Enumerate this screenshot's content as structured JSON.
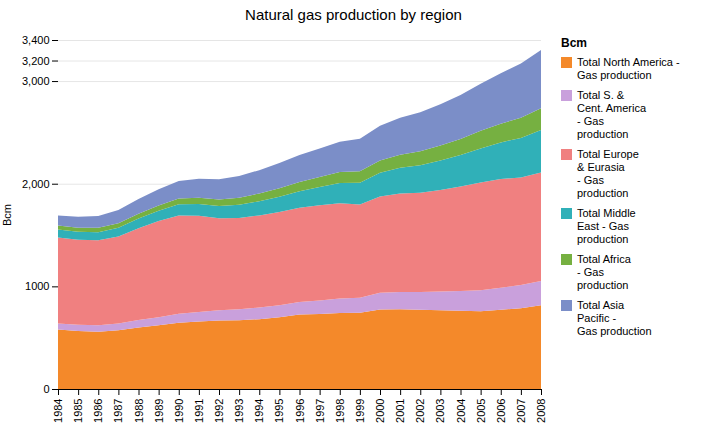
{
  "chart_data": {
    "type": "area",
    "stacked": true,
    "title": "Natural gas production by region",
    "ylabel": "Bcm",
    "legend_title": "Bcm",
    "legend": "right",
    "grid": "y",
    "x": [
      1984,
      1985,
      1986,
      1987,
      1988,
      1989,
      1990,
      1991,
      1992,
      1993,
      1994,
      1995,
      1996,
      1997,
      1998,
      1999,
      2000,
      2001,
      2002,
      2003,
      2004,
      2005,
      2006,
      2007,
      2008
    ],
    "xlim": [
      1984,
      2008
    ],
    "xticks": [
      1984,
      1985,
      1986,
      1987,
      1988,
      1989,
      1990,
      1991,
      1992,
      1993,
      1994,
      1995,
      1996,
      1997,
      1998,
      1999,
      2000,
      2001,
      2002,
      2003,
      2004,
      2005,
      2006,
      2007,
      2008
    ],
    "ylim": [
      0,
      3400
    ],
    "yticks": [
      0,
      1000,
      {
        "value": 2000,
        "label": "2,000"
      },
      {
        "value": 3000,
        "label": "3,000"
      },
      {
        "value": 3200,
        "label": "3,200"
      },
      {
        "value": 3400,
        "label": "3,400"
      }
    ],
    "series": [
      {
        "name": "Total North America -\nGas production",
        "color": "#F4892A",
        "values": [
          580,
          565,
          558,
          572,
          600,
          620,
          645,
          658,
          668,
          670,
          680,
          698,
          725,
          730,
          740,
          742,
          775,
          778,
          772,
          768,
          762,
          758,
          772,
          787,
          815
        ]
      },
      {
        "name": "Total S. &\nCent. America\n- Gas\nproduction",
        "color": "#C9A0DC",
        "values": [
          58,
          60,
          62,
          65,
          72,
          78,
          88,
          93,
          98,
          108,
          113,
          118,
          122,
          132,
          142,
          148,
          162,
          168,
          172,
          182,
          192,
          205,
          215,
          226,
          236
        ]
      },
      {
        "name": "Total Europe\n& Eurasia\n- Gas\nproduction",
        "color": "#F08080",
        "values": [
          838,
          828,
          828,
          848,
          895,
          938,
          958,
          938,
          898,
          888,
          898,
          908,
          918,
          928,
          928,
          908,
          938,
          958,
          968,
          988,
          1018,
          1048,
          1058,
          1048,
          1058
        ]
      },
      {
        "name": "Total Middle\nEast - Gas\nproduction",
        "color": "#30B0B8",
        "values": [
          78,
          78,
          80,
          86,
          93,
          100,
          108,
          113,
          118,
          128,
          138,
          148,
          162,
          178,
          198,
          212,
          232,
          252,
          267,
          288,
          307,
          332,
          357,
          385,
          415
        ]
      },
      {
        "name": "Total Africa\n- Gas\nproduction",
        "color": "#76B041",
        "values": [
          38,
          40,
          42,
          44,
          48,
          52,
          56,
          60,
          64,
          70,
          76,
          83,
          90,
          98,
          105,
          111,
          118,
          127,
          137,
          147,
          157,
          172,
          182,
          196,
          210
        ]
      },
      {
        "name": "Total Asia\nPacific -\nGas production",
        "color": "#7B8EC8",
        "values": [
          98,
          108,
          116,
          128,
          143,
          157,
          172,
          187,
          197,
          212,
          227,
          246,
          262,
          276,
          296,
          316,
          340,
          360,
          380,
          400,
          428,
          458,
          492,
          530,
          568
        ]
      }
    ]
  }
}
